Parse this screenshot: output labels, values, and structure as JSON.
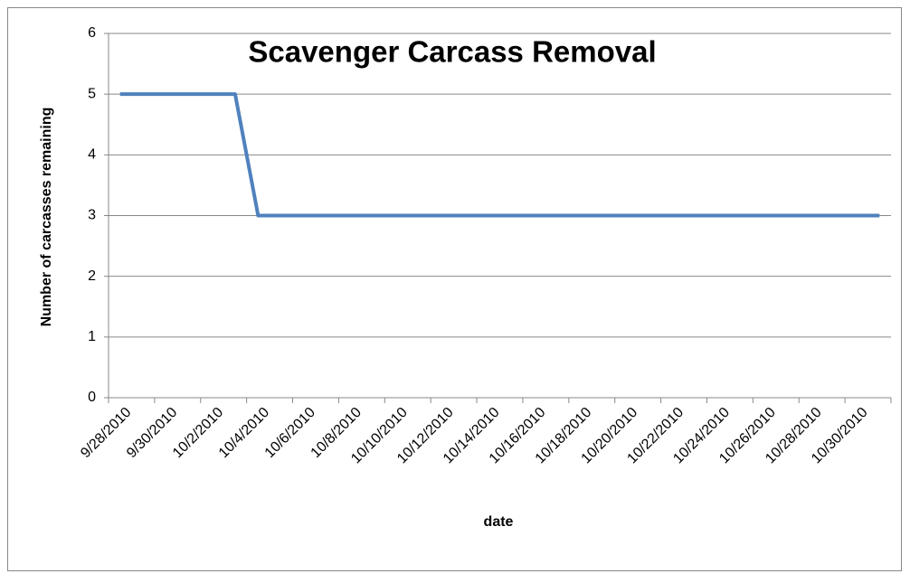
{
  "chart_data": {
    "type": "line",
    "title": "Scavenger Carcass Removal",
    "x_label": "date",
    "y_label": "Number of carcasses  remaining",
    "categories": [
      "9/28/2010",
      null,
      "9/30/2010",
      null,
      "10/2/2010",
      null,
      "10/4/2010",
      null,
      "10/6/2010",
      null,
      "10/8/2010",
      null,
      "10/10/2010",
      null,
      "10/12/2010",
      null,
      "10/14/2010",
      null,
      "10/16/2010",
      null,
      "10/18/2010",
      null,
      "10/20/2010",
      null,
      "10/22/2010",
      null,
      "10/24/2010",
      null,
      "10/26/2010",
      null,
      "10/28/2010",
      null,
      "10/30/2010",
      null
    ],
    "values": [
      5,
      5,
      5,
      5,
      5,
      5,
      3,
      3,
      3,
      3,
      3,
      3,
      3,
      3,
      3,
      3,
      3,
      3,
      3,
      3,
      3,
      3,
      3,
      3,
      3,
      3,
      3,
      3,
      3,
      3,
      3,
      3,
      3,
      3
    ],
    "color": "#4f81bd",
    "ylim": [
      0,
      6
    ],
    "yticks": [
      0,
      1,
      2,
      3,
      4,
      5,
      6
    ],
    "grid": true
  }
}
